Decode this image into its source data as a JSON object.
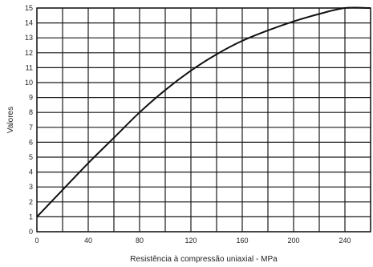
{
  "chart_data": {
    "type": "line",
    "title": "",
    "xlabel": "Resistência à compressão uniaxial - MPa",
    "ylabel": "Valores",
    "xlim": [
      0,
      260
    ],
    "ylim": [
      0,
      15
    ],
    "x_ticks": [
      "0",
      "40",
      "80",
      "120",
      "160",
      "200",
      "240"
    ],
    "y_ticks": [
      "0",
      "1",
      "2",
      "3",
      "4",
      "5",
      "6",
      "7",
      "8",
      "9",
      "10",
      "11",
      "12",
      "13",
      "14",
      "15"
    ],
    "grid": true,
    "legend": "none",
    "series": [
      {
        "color": "#111111",
        "x": [
          0,
          20,
          40,
          60,
          80,
          100,
          120,
          140,
          160,
          180,
          200,
          220,
          240,
          260
        ],
        "y": [
          1.0,
          2.8,
          4.6,
          6.3,
          8.0,
          9.5,
          10.8,
          11.9,
          12.8,
          13.5,
          14.1,
          14.6,
          15.0,
          15.0
        ]
      }
    ]
  }
}
